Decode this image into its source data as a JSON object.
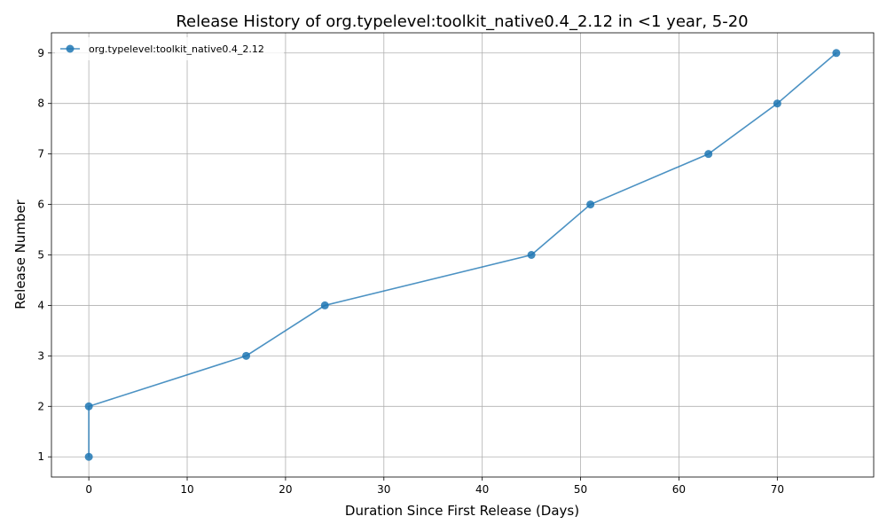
{
  "chart_data": {
    "type": "line",
    "title": "Release History of org.typelevel:toolkit_native0.4_2.12 in <1 year, 5-20",
    "xlabel": "Duration Since First Release (Days)",
    "ylabel": "Release Number",
    "xlim": [
      -3.8,
      79.8
    ],
    "ylim": [
      0.6,
      9.4
    ],
    "x_ticks": [
      0,
      10,
      20,
      30,
      40,
      50,
      60,
      70
    ],
    "y_ticks": [
      1,
      2,
      3,
      4,
      5,
      6,
      7,
      8,
      9
    ],
    "grid": true,
    "legend_position": "upper-left",
    "series": [
      {
        "name": "org.typelevel:toolkit_native0.4_2.12",
        "color": "#1f77b4",
        "marker": "circle",
        "x": [
          0,
          0,
          16,
          24,
          45,
          51,
          63,
          70,
          76
        ],
        "y": [
          1,
          2,
          3,
          4,
          5,
          6,
          7,
          8,
          9
        ]
      }
    ]
  }
}
